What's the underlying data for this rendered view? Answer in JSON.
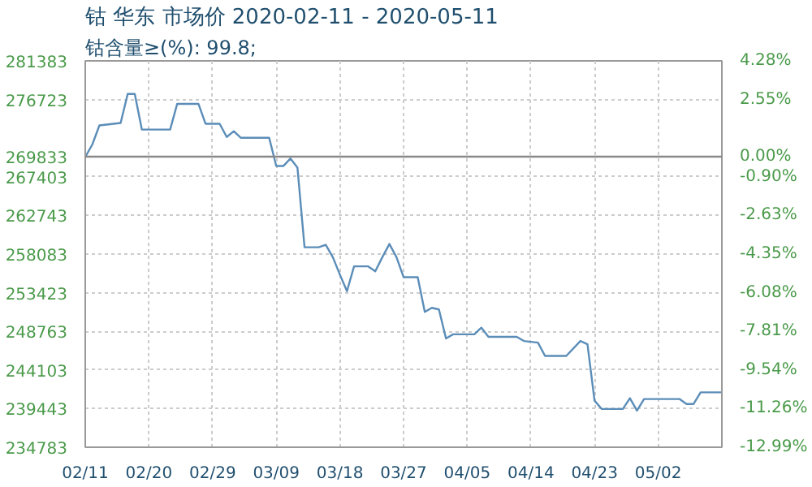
{
  "chart_data": {
    "type": "line",
    "title": "钴 华东 市场价 2020-02-11 - 2020-05-11",
    "subtitle": "钴含量≥(%): 99.8;",
    "x": [
      "2020-02-11",
      "2020-02-12",
      "2020-02-13",
      "2020-02-16",
      "2020-02-17",
      "2020-02-18",
      "2020-02-19",
      "2020-02-23",
      "2020-02-24",
      "2020-02-27",
      "2020-02-28",
      "2020-03-01",
      "2020-03-02",
      "2020-03-03",
      "2020-03-04",
      "2020-03-08",
      "2020-03-09",
      "2020-03-10",
      "2020-03-11",
      "2020-03-12",
      "2020-03-13",
      "2020-03-15",
      "2020-03-16",
      "2020-03-17",
      "2020-03-18",
      "2020-03-19",
      "2020-03-20",
      "2020-03-22",
      "2020-03-23",
      "2020-03-24",
      "2020-03-25",
      "2020-03-26",
      "2020-03-27",
      "2020-03-29",
      "2020-03-30",
      "2020-03-31",
      "2020-04-01",
      "2020-04-02",
      "2020-04-03",
      "2020-04-06",
      "2020-04-07",
      "2020-04-08",
      "2020-04-12",
      "2020-04-13",
      "2020-04-15",
      "2020-04-16",
      "2020-04-19",
      "2020-04-21",
      "2020-04-22",
      "2020-04-23",
      "2020-04-24",
      "2020-04-27",
      "2020-04-28",
      "2020-04-29",
      "2020-04-30",
      "2020-05-05",
      "2020-05-06",
      "2020-05-07",
      "2020-05-08",
      "2020-05-11"
    ],
    "series": [
      {
        "color": "#5b8db8",
        "values": [
          269800,
          271300,
          273600,
          273900,
          277400,
          277400,
          273100,
          273100,
          276200,
          276200,
          273800,
          273800,
          272200,
          272900,
          272100,
          272100,
          268700,
          268700,
          269600,
          268500,
          258900,
          258900,
          259200,
          257700,
          255600,
          253600,
          256600,
          256600,
          256000,
          257700,
          259300,
          257700,
          255300,
          255300,
          251100,
          251600,
          251400,
          247900,
          248400,
          248400,
          249200,
          248100,
          248100,
          247600,
          247400,
          245800,
          245800,
          247600,
          247200,
          240400,
          239400,
          239400,
          240700,
          239200,
          240600,
          240600,
          240000,
          240000,
          241400,
          241400
        ]
      }
    ],
    "xlim": [
      "2020-02-11",
      "2020-05-11"
    ],
    "xticks": [
      {
        "value": "2020-02-11",
        "label": "02/11"
      },
      {
        "value": "2020-02-20",
        "label": "02/20"
      },
      {
        "value": "2020-02-29",
        "label": "02/29"
      },
      {
        "value": "2020-03-09",
        "label": "03/09"
      },
      {
        "value": "2020-03-18",
        "label": "03/18"
      },
      {
        "value": "2020-03-27",
        "label": "03/27"
      },
      {
        "value": "2020-04-05",
        "label": "04/05"
      },
      {
        "value": "2020-04-14",
        "label": "04/14"
      },
      {
        "value": "2020-04-23",
        "label": "04/23"
      },
      {
        "value": "2020-05-02",
        "label": "05/02"
      }
    ],
    "ylim": [
      234783,
      281383
    ],
    "yticks": [
      234783,
      239443,
      244103,
      248763,
      253423,
      258083,
      262743,
      267403,
      269833,
      276723,
      281383
    ],
    "y2lim": [
      -12.99,
      4.28
    ],
    "y2ticks": [
      {
        "value": -12.99,
        "label": "-12.99%"
      },
      {
        "value": -11.26,
        "label": "-11.26%"
      },
      {
        "value": -9.54,
        "label": "-9.54%"
      },
      {
        "value": -7.81,
        "label": "-7.81%"
      },
      {
        "value": -6.08,
        "label": "-6.08%"
      },
      {
        "value": -4.35,
        "label": "-4.35%"
      },
      {
        "value": -2.63,
        "label": "-2.63%"
      },
      {
        "value": -0.9,
        "label": "-0.90%"
      },
      {
        "value": 0,
        "label": "0.00%"
      },
      {
        "value": 2.55,
        "label": "2.55%"
      },
      {
        "value": 4.28,
        "label": "4.28%"
      }
    ],
    "ref_lines": [
      {
        "axis": "y",
        "value": 269833,
        "color": "#888888"
      }
    ],
    "grid": true,
    "marker": "none",
    "line_style": "solid"
  }
}
